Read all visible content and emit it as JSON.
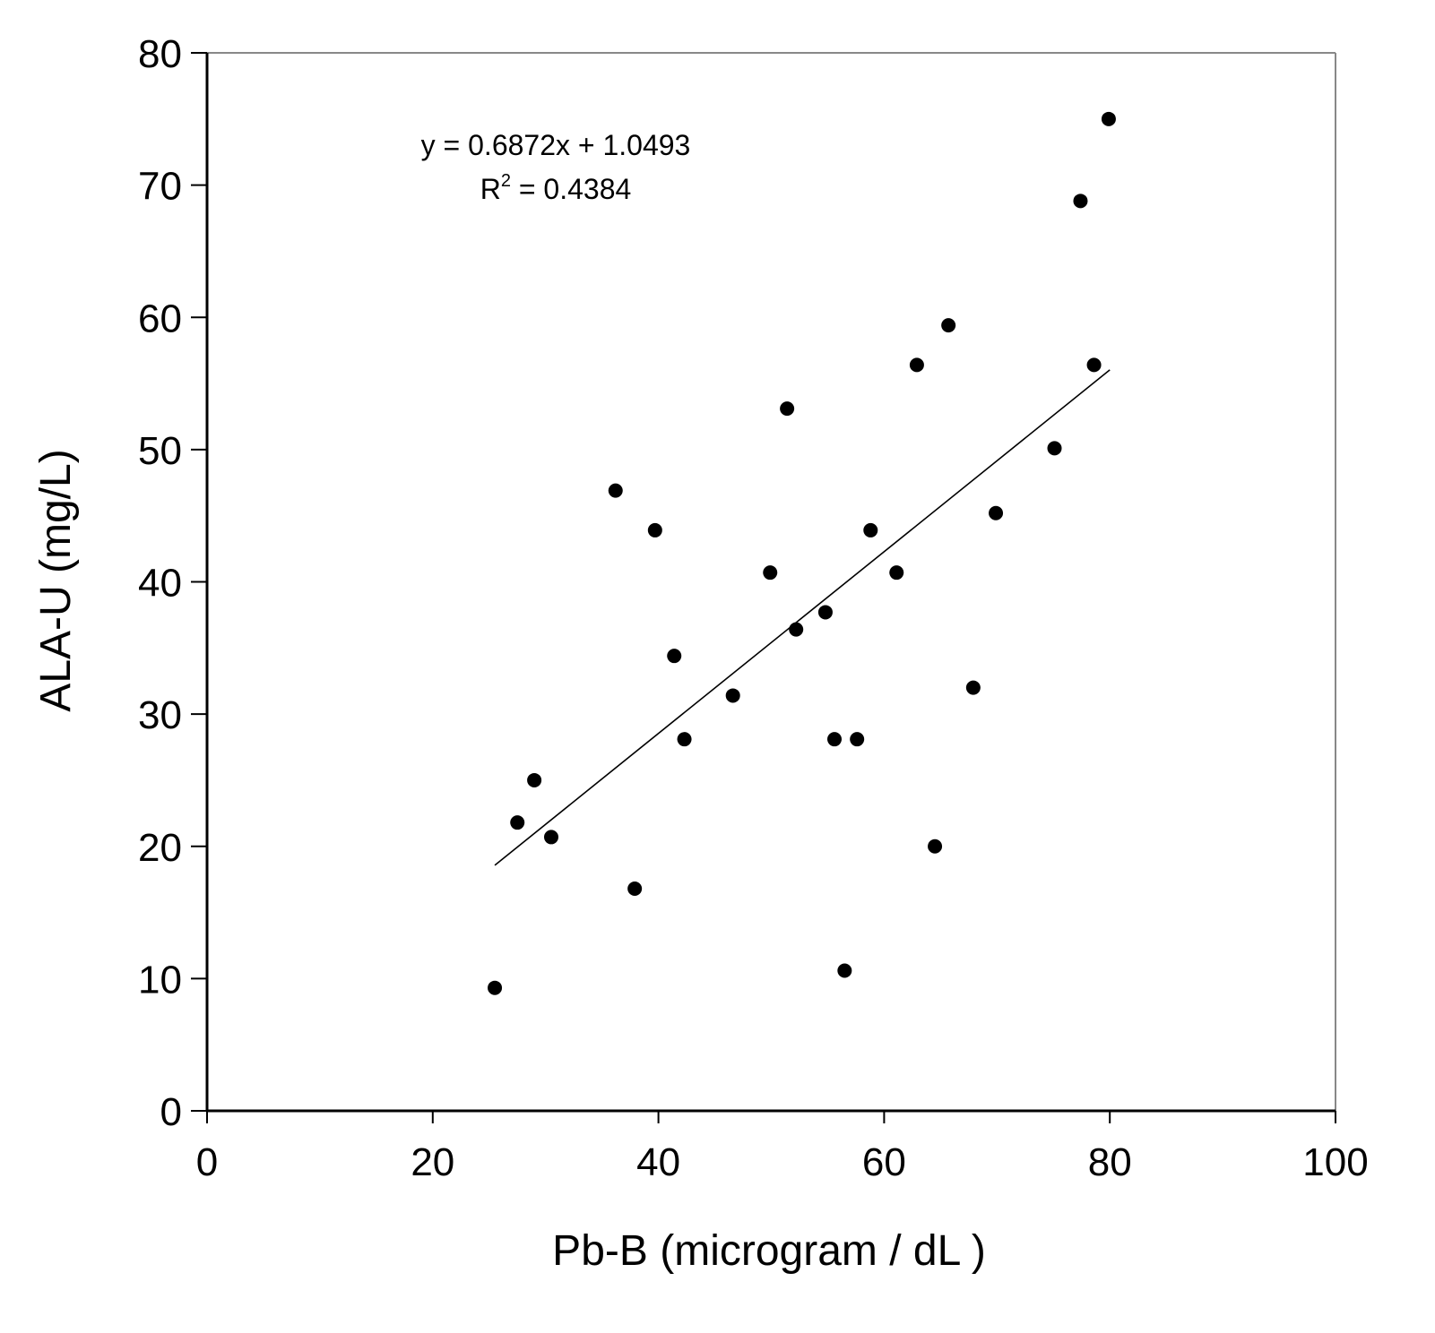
{
  "chart_data": {
    "type": "scatter",
    "title": "",
    "xlabel": "Pb-B (microgram / dL )",
    "ylabel": "ALA-U (mg/L)",
    "xlim": [
      0,
      100
    ],
    "ylim": [
      0,
      80
    ],
    "xticks": [
      0,
      20,
      40,
      60,
      80,
      100
    ],
    "yticks": [
      0,
      10,
      20,
      30,
      40,
      50,
      60,
      70,
      80
    ],
    "xtick_labels": [
      "0",
      "20",
      "40",
      "60",
      "80",
      "100"
    ],
    "ytick_labels": [
      "0",
      "10",
      "20",
      "30",
      "40",
      "50",
      "60",
      "70",
      "80"
    ],
    "grid": false,
    "legend": "none",
    "marker_color": "#000000",
    "series": [
      {
        "points": [
          {
            "x": 25.5,
            "y": 9.3
          },
          {
            "x": 27.5,
            "y": 21.8
          },
          {
            "x": 29.0,
            "y": 25.0
          },
          {
            "x": 30.5,
            "y": 20.7
          },
          {
            "x": 36.2,
            "y": 46.9
          },
          {
            "x": 37.9,
            "y": 16.8
          },
          {
            "x": 39.7,
            "y": 43.9
          },
          {
            "x": 41.4,
            "y": 34.4
          },
          {
            "x": 42.3,
            "y": 28.1
          },
          {
            "x": 46.6,
            "y": 31.4
          },
          {
            "x": 49.9,
            "y": 40.7
          },
          {
            "x": 51.4,
            "y": 53.1
          },
          {
            "x": 52.2,
            "y": 36.4
          },
          {
            "x": 54.8,
            "y": 37.7
          },
          {
            "x": 55.6,
            "y": 28.1
          },
          {
            "x": 56.5,
            "y": 10.6
          },
          {
            "x": 57.6,
            "y": 28.1
          },
          {
            "x": 58.8,
            "y": 43.9
          },
          {
            "x": 61.1,
            "y": 40.7
          },
          {
            "x": 62.9,
            "y": 56.4
          },
          {
            "x": 64.5,
            "y": 20.0
          },
          {
            "x": 65.7,
            "y": 59.4
          },
          {
            "x": 67.9,
            "y": 32.0
          },
          {
            "x": 69.9,
            "y": 45.2
          },
          {
            "x": 75.1,
            "y": 50.1
          },
          {
            "x": 77.4,
            "y": 68.8
          },
          {
            "x": 78.6,
            "y": 56.4
          },
          {
            "x": 79.9,
            "y": 75.0
          }
        ]
      }
    ],
    "trendline": {
      "slope": 0.6872,
      "intercept": 1.0493,
      "x_range": [
        25.5,
        80
      ]
    },
    "annotation": {
      "equation": "y = 0.6872x + 1.0493",
      "r2_prefix": "R",
      "r2_exponent": "2",
      "r2_value": " = 0.4384"
    }
  }
}
